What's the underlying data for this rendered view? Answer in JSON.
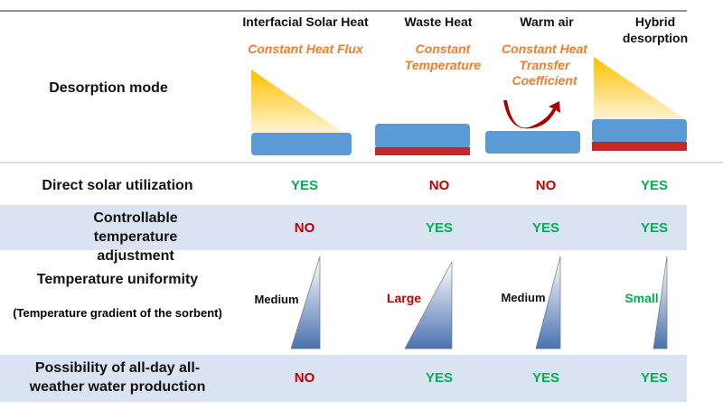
{
  "header": {
    "row_label": "Desorption mode",
    "columns": [
      {
        "title": "Interfacial Solar Heat",
        "subtitle": "Constant Heat Flux"
      },
      {
        "title": "Waste Heat",
        "subtitle": "Constant Temperature"
      },
      {
        "title": "Warm air",
        "subtitle": "Constant Heat Transfer Coefficient"
      },
      {
        "title": "Hybrid desorption",
        "subtitle": ""
      }
    ]
  },
  "rows": [
    {
      "label": "Direct solar utilization",
      "values": [
        "YES",
        "NO",
        "NO",
        "YES"
      ]
    },
    {
      "label": "Controllable temperature adjustment",
      "values": [
        "NO",
        "YES",
        "YES",
        "YES"
      ]
    },
    {
      "label": "Temperature uniformity",
      "sublabel": "(Temperature gradient of the sorbent)",
      "values": [
        "Medium",
        "Large",
        "Medium",
        "Small"
      ]
    },
    {
      "label": "Possibility of all-day all-weather water production",
      "values": [
        "NO",
        "YES",
        "YES",
        "YES"
      ]
    }
  ],
  "colors": {
    "yes": "#00b050",
    "no": "#c00000",
    "subtitle": "#ed7d31",
    "band": "#dae3f1",
    "sorbent": "#5b9bd5",
    "heater": "#c62828"
  }
}
